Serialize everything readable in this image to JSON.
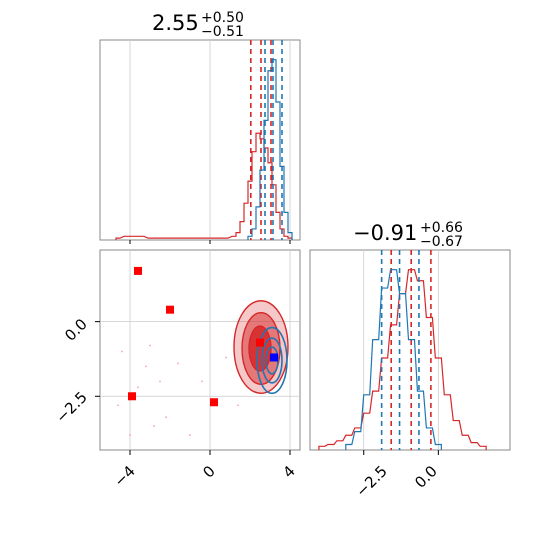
{
  "chart_data": {
    "type": "corner",
    "params": [
      {
        "title": {
          "median": "2.55",
          "plus": "+0.50",
          "minus": "−0.51"
        },
        "range": [
          -5.5,
          4.5
        ],
        "ticks": [
          {
            "v": -4,
            "label": "−4"
          },
          {
            "v": 0,
            "label": "0"
          },
          {
            "v": 4,
            "label": "4"
          }
        ]
      },
      {
        "title": {
          "median": "−0.91",
          "plus": "+0.66",
          "minus": "−0.67"
        },
        "range": [
          -4.3,
          2.4
        ],
        "ticks": [
          {
            "v": -2.5,
            "label": "−2.5"
          },
          {
            "v": 0.0,
            "label": "0.0"
          }
        ]
      }
    ],
    "series": [
      {
        "name": "",
        "color": "#d62728",
        "hist1": {
          "bins": [
            [
              -4.6,
              0.01
            ],
            [
              -4.2,
              0.02
            ],
            [
              -3.8,
              0.02
            ],
            [
              -3.4,
              0.02
            ],
            [
              -3.0,
              0.01
            ],
            [
              0.8,
              0.01
            ],
            [
              1.2,
              0.02
            ],
            [
              1.4,
              0.04
            ],
            [
              1.6,
              0.1
            ],
            [
              1.8,
              0.2
            ],
            [
              2.0,
              0.32
            ],
            [
              2.2,
              0.48
            ],
            [
              2.4,
              0.58
            ],
            [
              2.6,
              0.55
            ],
            [
              2.8,
              0.5
            ],
            [
              3.0,
              0.42
            ],
            [
              3.2,
              0.3
            ],
            [
              3.4,
              0.15
            ],
            [
              3.6,
              0.06
            ],
            [
              3.8,
              0.02
            ],
            [
              4.0,
              0.01
            ]
          ],
          "quantiles": [
            2.04,
            2.55,
            3.05
          ]
        },
        "hist2": {
          "bins": [
            [
              -3.9,
              0.02
            ],
            [
              -3.6,
              0.03
            ],
            [
              -3.3,
              0.05
            ],
            [
              -3.0,
              0.08
            ],
            [
              -2.7,
              0.12
            ],
            [
              -2.4,
              0.2
            ],
            [
              -2.1,
              0.32
            ],
            [
              -1.8,
              0.5
            ],
            [
              -1.5,
              0.68
            ],
            [
              -1.2,
              0.85
            ],
            [
              -0.9,
              0.98
            ],
            [
              -0.6,
              0.92
            ],
            [
              -0.3,
              0.72
            ],
            [
              0.0,
              0.5
            ],
            [
              0.3,
              0.3
            ],
            [
              0.6,
              0.16
            ],
            [
              0.9,
              0.08
            ],
            [
              1.2,
              0.04
            ],
            [
              1.5,
              0.02
            ]
          ],
          "quantiles": [
            -1.58,
            -0.91,
            -0.25
          ]
        },
        "contours": [
          {
            "cx": 2.55,
            "cy": -0.85,
            "rx": 1.35,
            "ry": 1.55,
            "opacity": 0.25
          },
          {
            "cx": 2.55,
            "cy": -0.9,
            "rx": 0.95,
            "ry": 1.2,
            "opacity": 0.5
          },
          {
            "cx": 2.5,
            "cy": -0.9,
            "rx": 0.55,
            "ry": 0.75,
            "opacity": 0.85
          }
        ],
        "markers": [
          [
            -3.6,
            1.7
          ],
          [
            -2.0,
            0.4
          ],
          [
            -3.9,
            -2.5
          ],
          [
            0.2,
            -2.7
          ],
          [
            2.5,
            -0.7
          ]
        ]
      },
      {
        "name": "",
        "color": "#1f77b4",
        "hist1": {
          "bins": [
            [
              2.0,
              0.02
            ],
            [
              2.2,
              0.06
            ],
            [
              2.4,
              0.18
            ],
            [
              2.6,
              0.38
            ],
            [
              2.8,
              0.65
            ],
            [
              3.0,
              0.92
            ],
            [
              3.2,
              0.98
            ],
            [
              3.4,
              0.75
            ],
            [
              3.6,
              0.4
            ],
            [
              3.8,
              0.15
            ],
            [
              4.0,
              0.04
            ]
          ],
          "quantiles": [
            2.75,
            3.15,
            3.6
          ]
        },
        "hist2": {
          "bins": [
            [
              -3.0,
              0.03
            ],
            [
              -2.7,
              0.1
            ],
            [
              -2.4,
              0.3
            ],
            [
              -2.1,
              0.6
            ],
            [
              -1.8,
              0.88
            ],
            [
              -1.5,
              0.98
            ],
            [
              -1.2,
              0.85
            ],
            [
              -0.9,
              0.6
            ],
            [
              -0.6,
              0.32
            ],
            [
              -0.3,
              0.12
            ],
            [
              0.0,
              0.03
            ]
          ],
          "quantiles": [
            -1.9,
            -1.3,
            -0.65
          ]
        },
        "contours": [
          {
            "cx": 3.1,
            "cy": -1.3,
            "rx": 0.75,
            "ry": 1.1
          },
          {
            "cx": 3.1,
            "cy": -1.3,
            "rx": 0.5,
            "ry": 0.75
          },
          {
            "cx": 3.1,
            "cy": -1.3,
            "rx": 0.3,
            "ry": 0.45
          }
        ],
        "markers": [
          [
            3.2,
            -1.2
          ]
        ]
      }
    ],
    "grid": true
  }
}
